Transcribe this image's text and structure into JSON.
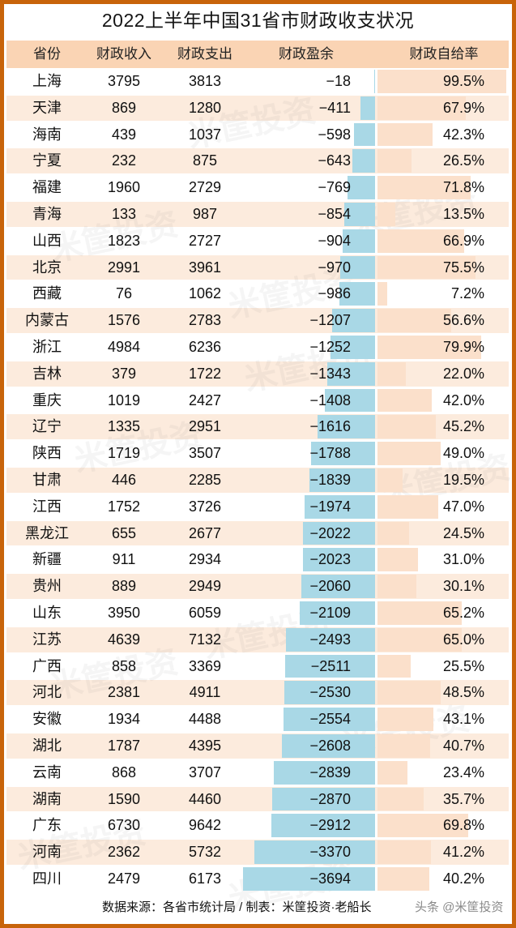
{
  "title": "2022上半年中国31省市财政收支状况",
  "headers": [
    "省份",
    "财政收入",
    "财政支出",
    "财政盈余",
    "财政自给率"
  ],
  "footer": {
    "source": "数据来源：各省市统计局 / 制表：米筐投资·老船长",
    "watermark": "头条 @米筐投资"
  },
  "watermark_text": "米筐投资",
  "colors": {
    "border": "#C8640A",
    "header_bg": "#FAD4B4",
    "alt_row_bg": "#FCEBDD",
    "surplus_bar": "#A9D8E6",
    "rate_bar": "#FBE0CB"
  },
  "rows": [
    {
      "province": "上海",
      "income": "3795",
      "expense": "3813",
      "surplus": "−18",
      "rate": "99.5%"
    },
    {
      "province": "天津",
      "income": "869",
      "expense": "1280",
      "surplus": "−411",
      "rate": "67.9%"
    },
    {
      "province": "海南",
      "income": "439",
      "expense": "1037",
      "surplus": "−598",
      "rate": "42.3%"
    },
    {
      "province": "宁夏",
      "income": "232",
      "expense": "875",
      "surplus": "−643",
      "rate": "26.5%"
    },
    {
      "province": "福建",
      "income": "1960",
      "expense": "2729",
      "surplus": "−769",
      "rate": "71.8%"
    },
    {
      "province": "青海",
      "income": "133",
      "expense": "987",
      "surplus": "−854",
      "rate": "13.5%"
    },
    {
      "province": "山西",
      "income": "1823",
      "expense": "2727",
      "surplus": "−904",
      "rate": "66.9%"
    },
    {
      "province": "北京",
      "income": "2991",
      "expense": "3961",
      "surplus": "−970",
      "rate": "75.5%"
    },
    {
      "province": "西藏",
      "income": "76",
      "expense": "1062",
      "surplus": "−986",
      "rate": "7.2%"
    },
    {
      "province": "内蒙古",
      "income": "1576",
      "expense": "2783",
      "surplus": "−1207",
      "rate": "56.6%"
    },
    {
      "province": "浙江",
      "income": "4984",
      "expense": "6236",
      "surplus": "−1252",
      "rate": "79.9%"
    },
    {
      "province": "吉林",
      "income": "379",
      "expense": "1722",
      "surplus": "−1343",
      "rate": "22.0%"
    },
    {
      "province": "重庆",
      "income": "1019",
      "expense": "2427",
      "surplus": "−1408",
      "rate": "42.0%"
    },
    {
      "province": "辽宁",
      "income": "1335",
      "expense": "2951",
      "surplus": "−1616",
      "rate": "45.2%"
    },
    {
      "province": "陕西",
      "income": "1719",
      "expense": "3507",
      "surplus": "−1788",
      "rate": "49.0%"
    },
    {
      "province": "甘肃",
      "income": "446",
      "expense": "2285",
      "surplus": "−1839",
      "rate": "19.5%"
    },
    {
      "province": "江西",
      "income": "1752",
      "expense": "3726",
      "surplus": "−1974",
      "rate": "47.0%"
    },
    {
      "province": "黑龙江",
      "income": "655",
      "expense": "2677",
      "surplus": "−2022",
      "rate": "24.5%"
    },
    {
      "province": "新疆",
      "income": "911",
      "expense": "2934",
      "surplus": "−2023",
      "rate": "31.0%"
    },
    {
      "province": "贵州",
      "income": "889",
      "expense": "2949",
      "surplus": "−2060",
      "rate": "30.1%"
    },
    {
      "province": "山东",
      "income": "3950",
      "expense": "6059",
      "surplus": "−2109",
      "rate": "65.2%"
    },
    {
      "province": "江苏",
      "income": "4639",
      "expense": "7132",
      "surplus": "−2493",
      "rate": "65.0%"
    },
    {
      "province": "广西",
      "income": "858",
      "expense": "3369",
      "surplus": "−2511",
      "rate": "25.5%"
    },
    {
      "province": "河北",
      "income": "2381",
      "expense": "4911",
      "surplus": "−2530",
      "rate": "48.5%"
    },
    {
      "province": "安徽",
      "income": "1934",
      "expense": "4488",
      "surplus": "−2554",
      "rate": "43.1%"
    },
    {
      "province": "湖北",
      "income": "1787",
      "expense": "4395",
      "surplus": "−2608",
      "rate": "40.7%"
    },
    {
      "province": "云南",
      "income": "868",
      "expense": "3707",
      "surplus": "−2839",
      "rate": "23.4%"
    },
    {
      "province": "湖南",
      "income": "1590",
      "expense": "4460",
      "surplus": "−2870",
      "rate": "35.7%"
    },
    {
      "province": "广东",
      "income": "6730",
      "expense": "9642",
      "surplus": "−2912",
      "rate": "69.8%"
    },
    {
      "province": "河南",
      "income": "2362",
      "expense": "5732",
      "surplus": "−3370",
      "rate": "41.2%"
    },
    {
      "province": "四川",
      "income": "2479",
      "expense": "6173",
      "surplus": "−3694",
      "rate": "40.2%"
    }
  ],
  "chart_data": {
    "type": "table",
    "title": "2022上半年中国31省市财政收支状况",
    "columns": [
      "省份",
      "财政收入",
      "财政支出",
      "财政盈余",
      "财政自给率"
    ],
    "categories": [
      "上海",
      "天津",
      "海南",
      "宁夏",
      "福建",
      "青海",
      "山西",
      "北京",
      "西藏",
      "内蒙古",
      "浙江",
      "吉林",
      "重庆",
      "辽宁",
      "陕西",
      "甘肃",
      "江西",
      "黑龙江",
      "新疆",
      "贵州",
      "山东",
      "江苏",
      "广西",
      "河北",
      "安徽",
      "湖北",
      "云南",
      "湖南",
      "广东",
      "河南",
      "四川"
    ],
    "series": [
      {
        "name": "财政收入",
        "values": [
          3795,
          869,
          439,
          232,
          1960,
          133,
          1823,
          2991,
          76,
          1576,
          4984,
          379,
          1019,
          1335,
          1719,
          446,
          1752,
          655,
          911,
          889,
          3950,
          4639,
          858,
          2381,
          1934,
          1787,
          868,
          1590,
          6730,
          2362,
          2479
        ]
      },
      {
        "name": "财政支出",
        "values": [
          3813,
          1280,
          1037,
          875,
          2729,
          987,
          2727,
          3961,
          1062,
          2783,
          6236,
          1722,
          2427,
          2951,
          3507,
          2285,
          3726,
          2677,
          2934,
          2949,
          6059,
          7132,
          3369,
          4911,
          4488,
          4395,
          3707,
          4460,
          9642,
          5732,
          6173
        ]
      },
      {
        "name": "财政盈余",
        "values": [
          -18,
          -411,
          -598,
          -643,
          -769,
          -854,
          -904,
          -970,
          -986,
          -1207,
          -1252,
          -1343,
          -1408,
          -1616,
          -1788,
          -1839,
          -1974,
          -2022,
          -2023,
          -2060,
          -2109,
          -2493,
          -2511,
          -2530,
          -2554,
          -2608,
          -2839,
          -2870,
          -2912,
          -3370,
          -3694
        ],
        "display": "bar-left"
      },
      {
        "name": "财政自给率",
        "unit": "%",
        "values": [
          99.5,
          67.9,
          42.3,
          26.5,
          71.8,
          13.5,
          66.9,
          75.5,
          7.2,
          56.6,
          79.9,
          22.0,
          42.0,
          45.2,
          49.0,
          19.5,
          47.0,
          24.5,
          31.0,
          30.1,
          65.2,
          65.0,
          25.5,
          48.5,
          43.1,
          40.7,
          23.4,
          35.7,
          69.8,
          41.2,
          40.2
        ],
        "display": "bar-right"
      }
    ],
    "source": "数据来源：各省市统计局 / 制表：米筐投资·老船长"
  }
}
